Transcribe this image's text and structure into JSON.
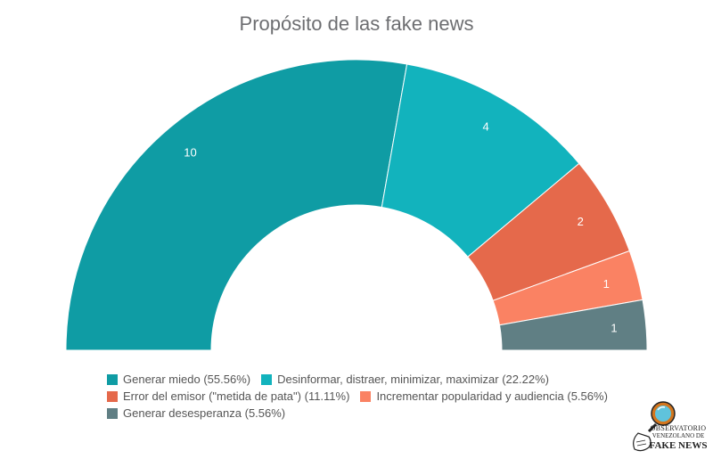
{
  "chart_data": {
    "type": "pie",
    "variant": "semi-donut",
    "title": "Propósito de las fake news",
    "slices": [
      {
        "label": "Generar miedo",
        "value": 10,
        "percent_label": "(55.56%)",
        "color": "#0f9ca4"
      },
      {
        "label": "Desinformar, distraer, minimizar, maximizar",
        "value": 4,
        "percent_label": "(22.22%)",
        "color": "#12b3bd"
      },
      {
        "label": "Error del emisor (\"metida de pata\")",
        "value": 2,
        "percent_label": "(11.11%)",
        "color": "#e5694b"
      },
      {
        "label": "Incrementar popularidad y audiencia",
        "value": 1,
        "percent_label": "(5.56%)",
        "color": "#fa8263"
      },
      {
        "label": "Generar desesperanza",
        "value": 1,
        "percent_label": "(5.56%)",
        "color": "#607f84"
      }
    ],
    "legend_position": "bottom"
  },
  "logo": {
    "line1": "OBSERVATORIO",
    "line2": "VENEZOLANO DE",
    "line3": "FAKE NEWS"
  }
}
